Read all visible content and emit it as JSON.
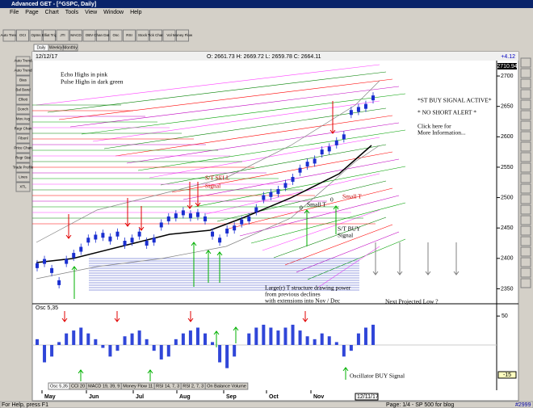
{
  "window": {
    "title": "Advanced GET - [^GSPC, Daily]",
    "menu": [
      "File",
      "Page",
      "Chart",
      "Tools",
      "View",
      "Window",
      "Help"
    ],
    "toolbar": [
      "Auto Trend",
      "OCI",
      "Optns",
      "Elliot Trig",
      "JTI",
      "MACD",
      "OBV",
      "Chan Data",
      "Osc",
      "RSI",
      "Stock",
      "Tick Chart",
      "Vol",
      "Money Flow"
    ],
    "tools": [
      "Auto Trend",
      "Auto Trend",
      "Bias",
      "Bal Band",
      "Elliott",
      "Donch",
      "Mov Avg",
      "Regr Chan",
      "Fibonl",
      "Price Chan",
      "Regr Stat",
      "Trade Profile",
      "Lines",
      "XTL"
    ],
    "timeframes": [
      "Daily",
      "Weekly",
      "Monthly"
    ],
    "status": {
      "help": "For Help, press F1",
      "page": "Page: 1/4 - SP 500 for blog",
      "count": "#2999"
    }
  },
  "chart_data": {
    "type": "bar",
    "date": "12/12/17",
    "ohlc": "O: 2661.73   H: 2669.72   L: 2659.78   C: 2664.11",
    "change": "+4.12",
    "last_price": "2710.94",
    "ylim": [
      2328,
      2724
    ],
    "yticks": [
      2350,
      2400,
      2450,
      2500,
      2550,
      2600,
      2650,
      2700
    ],
    "months": [
      "May",
      "Jun",
      "Jul",
      "Aug",
      "Sep",
      "Oct",
      "Nov"
    ],
    "end_date": "12/11/17",
    "values": [
      2388,
      2395,
      2380,
      2360,
      2395,
      2405,
      2415,
      2430,
      2435,
      2438,
      2432,
      2440,
      2425,
      2430,
      2440,
      2425,
      2430,
      2455,
      2465,
      2470,
      2475,
      2470,
      2472,
      2465,
      2440,
      2430,
      2445,
      2450,
      2460,
      2465,
      2480,
      2500,
      2505,
      2510,
      2520,
      2530,
      2545,
      2555,
      2560,
      2575,
      2580,
      2590,
      2600,
      2640,
      2645,
      2650,
      2664
    ],
    "color": "#1a2fd0",
    "annotations": [
      "Echo Highs in pink",
      "Pulse Highs in dark green",
      "*ST BUY SIGNAL ACTIVE*",
      "* NO SHORT ALERT *",
      "Click here for",
      "More Information...",
      "S/T SELL",
      "Signal",
      "Small T",
      "Small T",
      "0",
      "0",
      "S/T BUY",
      "Signal",
      "Large(r) T structure drawing power",
      "from previous declines",
      "with extensions into Nov / Dec",
      "Next Projected Low ?",
      "Oscillator BUY Signal"
    ],
    "oscillator": {
      "title": "Osc 5,35",
      "ylim": [
        -60,
        60
      ],
      "yticks": [
        50
      ],
      "current": "-15",
      "color": "#3046d8",
      "values": [
        10,
        -30,
        -20,
        5,
        20,
        25,
        30,
        20,
        10,
        -5,
        -20,
        -10,
        15,
        20,
        25,
        10,
        -10,
        -25,
        -20,
        10,
        20,
        25,
        30,
        20,
        5,
        -30,
        -40,
        -20,
        0,
        20,
        30,
        35,
        30,
        25,
        30,
        35,
        25,
        15,
        10,
        20,
        15,
        5,
        -20,
        -10,
        20,
        30,
        35
      ]
    },
    "tabs": [
      "Osc 5,35",
      "CCI 20",
      "MACD 19, 39, 9",
      "Money Flow 11",
      "RSI 14, 7, 3",
      "RSI 2, 7, 3",
      "On Balance Volume"
    ]
  }
}
